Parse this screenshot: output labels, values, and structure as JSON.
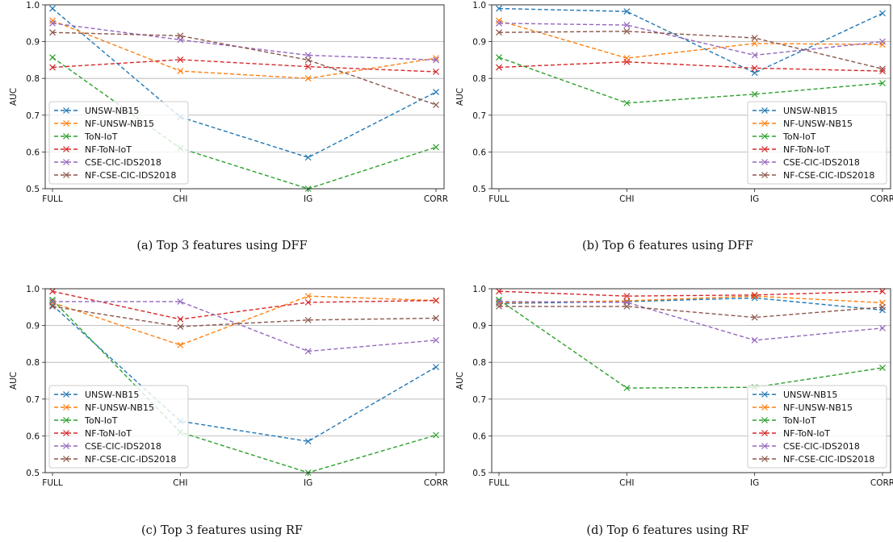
{
  "colors": {
    "UNSW-NB15": "#1f77b4",
    "NF-UNSW-NB15": "#ff7f0e",
    "ToN-IoT": "#2ca02c",
    "NF-ToN-IoT": "#d62728",
    "CSE-CIC-IDS2018": "#9467bd",
    "NF-CSE-CIC-IDS2018": "#8c564b"
  },
  "chart_data": [
    {
      "type": "line",
      "caption": "(a) Top 3 features using DFF",
      "categories": [
        "FULL",
        "CHI",
        "IG",
        "CORR"
      ],
      "ylabel": "AUC",
      "ylim": [
        0.5,
        1.0
      ],
      "yticks": [
        "0.5",
        "0.6",
        "0.7",
        "0.8",
        "0.9",
        "1.0"
      ],
      "grid": "y",
      "legend": "lower-left",
      "series": [
        {
          "name": "UNSW-NB15",
          "values": [
            0.99,
            0.695,
            0.585,
            0.763
          ]
        },
        {
          "name": "NF-UNSW-NB15",
          "values": [
            0.957,
            0.82,
            0.8,
            0.855
          ]
        },
        {
          "name": "ToN-IoT",
          "values": [
            0.857,
            0.61,
            0.5,
            0.613
          ]
        },
        {
          "name": "NF-ToN-IoT",
          "values": [
            0.83,
            0.851,
            0.832,
            0.818
          ]
        },
        {
          "name": "CSE-CIC-IDS2018",
          "values": [
            0.95,
            0.905,
            0.863,
            0.85
          ]
        },
        {
          "name": "NF-CSE-CIC-IDS2018",
          "values": [
            0.925,
            0.916,
            0.85,
            0.728
          ]
        }
      ]
    },
    {
      "type": "line",
      "caption": "(b) Top 6 features using DFF",
      "categories": [
        "FULL",
        "CHI",
        "IG",
        "CORR"
      ],
      "ylabel": "AUC",
      "ylim": [
        0.5,
        1.0
      ],
      "yticks": [
        "0.5",
        "0.6",
        "0.7",
        "0.8",
        "0.9",
        "1.0"
      ],
      "grid": "y",
      "legend": "lower-right",
      "series": [
        {
          "name": "UNSW-NB15",
          "values": [
            0.99,
            0.982,
            0.815,
            0.977
          ]
        },
        {
          "name": "NF-UNSW-NB15",
          "values": [
            0.957,
            0.855,
            0.895,
            0.892
          ]
        },
        {
          "name": "ToN-IoT",
          "values": [
            0.857,
            0.733,
            0.757,
            0.787
          ]
        },
        {
          "name": "NF-ToN-IoT",
          "values": [
            0.83,
            0.845,
            0.828,
            0.82
          ]
        },
        {
          "name": "CSE-CIC-IDS2018",
          "values": [
            0.95,
            0.945,
            0.863,
            0.9
          ]
        },
        {
          "name": "NF-CSE-CIC-IDS2018",
          "values": [
            0.925,
            0.928,
            0.91,
            0.826
          ]
        }
      ]
    },
    {
      "type": "line",
      "caption": "(c) Top 3 features using RF",
      "categories": [
        "FULL",
        "CHI",
        "IG",
        "CORR"
      ],
      "ylabel": "AUC",
      "ylim": [
        0.5,
        1.0
      ],
      "yticks": [
        "0.5",
        "0.6",
        "0.7",
        "0.8",
        "0.9",
        "1.0"
      ],
      "grid": "y",
      "legend": "lower-left",
      "series": [
        {
          "name": "UNSW-NB15",
          "values": [
            0.955,
            0.64,
            0.585,
            0.787
          ]
        },
        {
          "name": "NF-UNSW-NB15",
          "values": [
            0.962,
            0.847,
            0.98,
            0.968
          ]
        },
        {
          "name": "ToN-IoT",
          "values": [
            0.97,
            0.61,
            0.5,
            0.602
          ]
        },
        {
          "name": "NF-ToN-IoT",
          "values": [
            0.993,
            0.917,
            0.963,
            0.968
          ]
        },
        {
          "name": "CSE-CIC-IDS2018",
          "values": [
            0.965,
            0.965,
            0.83,
            0.86
          ]
        },
        {
          "name": "NF-CSE-CIC-IDS2018",
          "values": [
            0.952,
            0.897,
            0.915,
            0.92
          ]
        }
      ]
    },
    {
      "type": "line",
      "caption": "(d) Top 6 features using RF",
      "categories": [
        "FULL",
        "CHI",
        "IG",
        "CORR"
      ],
      "ylabel": "AUC",
      "ylim": [
        0.5,
        1.0
      ],
      "yticks": [
        "0.5",
        "0.6",
        "0.7",
        "0.8",
        "0.9",
        "1.0"
      ],
      "grid": "y",
      "legend": "lower-right",
      "series": [
        {
          "name": "UNSW-NB15",
          "values": [
            0.96,
            0.965,
            0.975,
            0.942
          ]
        },
        {
          "name": "NF-UNSW-NB15",
          "values": [
            0.962,
            0.967,
            0.98,
            0.962
          ]
        },
        {
          "name": "ToN-IoT",
          "values": [
            0.97,
            0.73,
            0.732,
            0.785
          ]
        },
        {
          "name": "NF-ToN-IoT",
          "values": [
            0.993,
            0.98,
            0.983,
            0.993
          ]
        },
        {
          "name": "CSE-CIC-IDS2018",
          "values": [
            0.965,
            0.963,
            0.86,
            0.893
          ]
        },
        {
          "name": "NF-CSE-CIC-IDS2018",
          "values": [
            0.952,
            0.952,
            0.922,
            0.95
          ]
        }
      ]
    }
  ]
}
